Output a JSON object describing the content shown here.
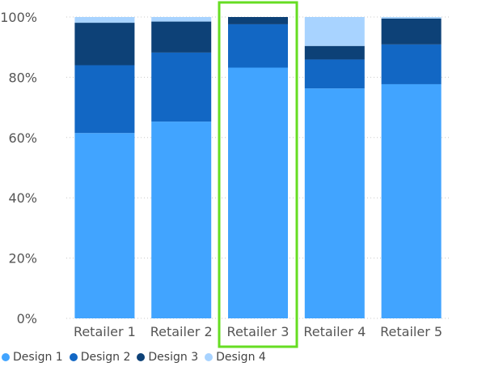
{
  "chart_data": {
    "type": "bar",
    "stacked": true,
    "normalized": true,
    "categories": [
      "Retailer 1",
      "Retailer 2",
      "Retailer 3",
      "Retailer 4",
      "Retailer 5"
    ],
    "series": [
      {
        "name": "Design 1",
        "color": "#41A4FF",
        "values": [
          61.5,
          65.3,
          83.2,
          76.3,
          77.7
        ]
      },
      {
        "name": "Design 2",
        "color": "#1267C4",
        "values": [
          22.5,
          22.9,
          14.4,
          9.6,
          13.2
        ]
      },
      {
        "name": "Design 3",
        "color": "#0D4177",
        "values": [
          14.1,
          10.3,
          2.4,
          4.5,
          8.6
        ]
      },
      {
        "name": "Design 4",
        "color": "#A8D3FF",
        "values": [
          1.9,
          1.5,
          0.0,
          9.6,
          0.5
        ]
      }
    ],
    "y_ticks": [
      "0%",
      "20%",
      "40%",
      "60%",
      "80%",
      "100%"
    ],
    "ylim": [
      0,
      100
    ],
    "highlighted_category": "Retailer 3",
    "highlight_color": "#66DD22",
    "grid": true,
    "legend_position": "bottom-left"
  }
}
